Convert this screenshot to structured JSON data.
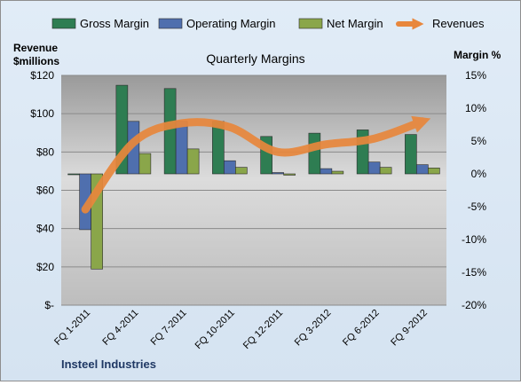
{
  "chart_data": {
    "type": "bar",
    "title": "Quarterly Margins",
    "left_axis_label": "Revenue $millions",
    "right_axis_label": "Margin %",
    "categories": [
      "FQ 1-2011",
      "FQ 4-2011",
      "FQ 7-2011",
      "FQ 10-2011",
      "FQ 12-2011",
      "FQ 3-2012",
      "FQ 6-2012",
      "FQ 9-2012"
    ],
    "left_axis": {
      "ylim": [
        0,
        120
      ],
      "ticks": [
        "$-",
        "$20",
        "$40",
        "$60",
        "$80",
        "$100",
        "$120"
      ]
    },
    "right_axis": {
      "ylim": [
        -20,
        15
      ],
      "ticks": [
        "-20%",
        "-15%",
        "-10%",
        "-5%",
        "0%",
        "5%",
        "10%",
        "15%"
      ]
    },
    "series": [
      {
        "name": "Gross Margin",
        "axis": "right",
        "kind": "bar",
        "color": "#2e7d52",
        "values": [
          0.0,
          13.5,
          13.0,
          8.0,
          5.7,
          6.2,
          6.7,
          6.0
        ]
      },
      {
        "name": "Operating Margin",
        "axis": "right",
        "kind": "bar",
        "color": "#4f6fae",
        "values": [
          -8.5,
          8.0,
          8.0,
          2.0,
          0.2,
          0.8,
          1.8,
          1.4
        ]
      },
      {
        "name": "Net Margin",
        "axis": "right",
        "kind": "bar",
        "color": "#8aa64a",
        "values": [
          -14.5,
          3.1,
          3.8,
          1.0,
          -0.2,
          0.4,
          1.0,
          0.9
        ]
      },
      {
        "name": "Revenues",
        "axis": "left",
        "kind": "line",
        "color": "#e8873c",
        "values": [
          50,
          85,
          95,
          93,
          80,
          84,
          87,
          96
        ]
      }
    ],
    "grid": true,
    "legend_position": "top"
  },
  "footer_label": "Insteel Industries"
}
